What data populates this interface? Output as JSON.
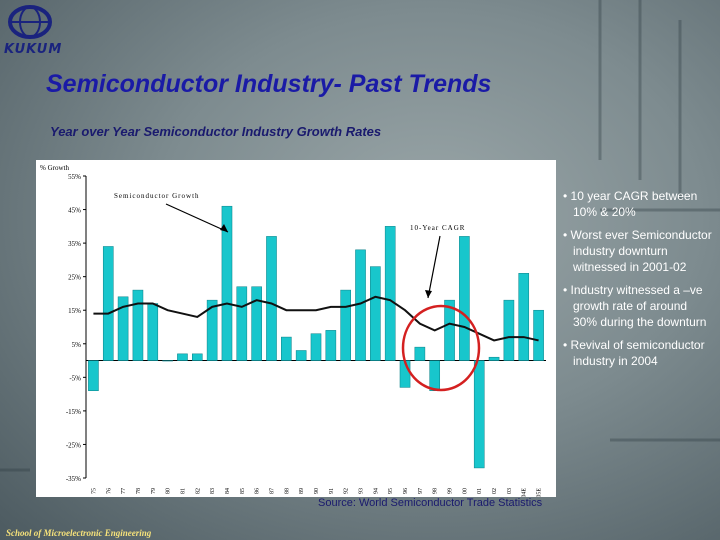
{
  "logo": {
    "text": "KUKUM",
    "icon": "globe-logo-icon"
  },
  "slide": {
    "title": "Semiconductor Industry- Past Trends",
    "subtitle": "Year over Year Semiconductor Industry Growth Rates",
    "source": "Source: World Semiconductor Trade Statistics",
    "footer": "School of Microelectronic Engineering"
  },
  "bullets": [
    "• 10 year CAGR between 10% & 20%",
    "• Worst ever Semiconductor industry downturn witnessed in 2001-02",
    "• Industry witnessed a –ve growth rate of around 30% during the downturn",
    "• Revival of semiconductor industry in 2004"
  ],
  "colors": {
    "bars": "#18c6cc",
    "line": "#111111",
    "circle": "#d42020",
    "title": "#1a1aa6"
  },
  "chart_data": {
    "type": "bar",
    "ylabel": "% Growth",
    "ylim": [
      -35,
      55
    ],
    "yticks": [
      55,
      45,
      35,
      25,
      15,
      5,
      -5,
      -15,
      -25,
      -35
    ],
    "ytick_labels": [
      "55%",
      "45%",
      "35%",
      "25%",
      "15%",
      "5%",
      "-5%",
      "-15%",
      "-25%",
      "-35%"
    ],
    "categories": [
      "75",
      "76",
      "77",
      "78",
      "79",
      "80",
      "81",
      "82",
      "83",
      "84",
      "85",
      "86",
      "87",
      "88",
      "89",
      "90",
      "91",
      "92",
      "93",
      "94",
      "95",
      "96",
      "97",
      "98",
      "99",
      "00",
      "01",
      "02",
      "03",
      "04E",
      "05E"
    ],
    "series": [
      {
        "name": "Semiconductor Growth",
        "values": [
          -9,
          34,
          19,
          21,
          17,
          0,
          2,
          2,
          18,
          46,
          22,
          22,
          37,
          7,
          3,
          8,
          9,
          21,
          33,
          28,
          40,
          -8,
          4,
          -9,
          18,
          37,
          -32,
          1,
          18,
          26,
          15
        ]
      },
      {
        "name": "10-Year CAGR",
        "values": [
          14,
          14,
          16,
          17,
          17,
          15,
          14,
          13,
          16,
          17,
          16,
          18,
          17,
          15,
          15,
          15,
          16,
          16,
          17,
          19,
          18,
          15,
          11,
          9,
          11,
          10,
          8,
          6,
          7,
          7,
          6
        ]
      }
    ],
    "annotations": [
      "Semiconductor Growth",
      "10-Year CAGR"
    ],
    "grid": false,
    "legend": "none"
  }
}
